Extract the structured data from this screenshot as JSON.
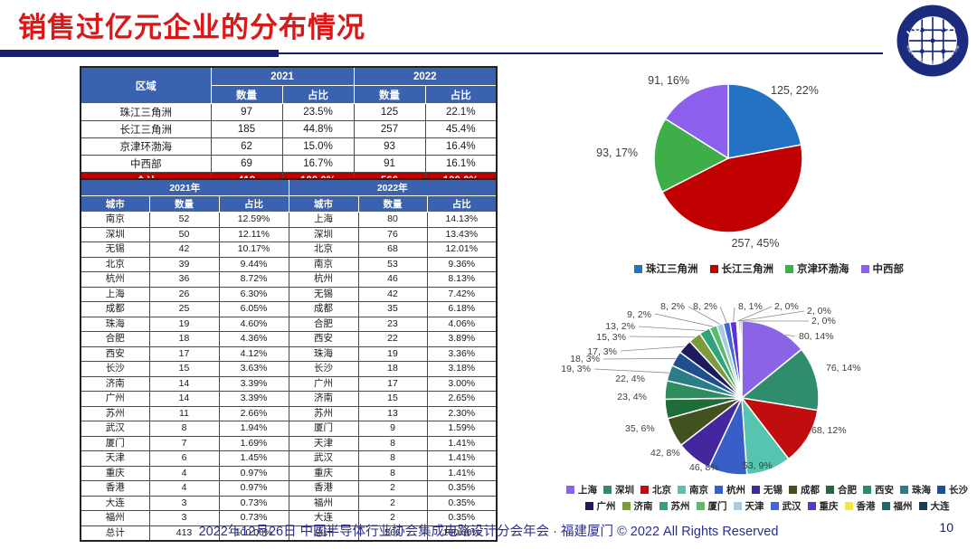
{
  "header": {
    "title": "销售过亿元企业的分布情况",
    "logo": {
      "name": "ICCAD",
      "ring_text": "中国半导体行业协会集成电路设计分会"
    }
  },
  "region_table": {
    "col_region": "区域",
    "year1": "2021",
    "year2": "2022",
    "col_count": "数量",
    "col_share": "占比",
    "rows": [
      [
        "珠江三角洲",
        "97",
        "23.5%",
        "125",
        "22.1%"
      ],
      [
        "长江三角洲",
        "185",
        "44.8%",
        "257",
        "45.4%"
      ],
      [
        "京津环渤海",
        "62",
        "15.0%",
        "93",
        "16.4%"
      ],
      [
        "中西部",
        "69",
        "16.7%",
        "91",
        "16.1%"
      ]
    ],
    "total_row": [
      "合计",
      "413",
      "100.0%",
      "566",
      "100.0%"
    ]
  },
  "city_table": {
    "year1": "2021年",
    "year2": "2022年",
    "col_city": "城市",
    "col_count": "数量",
    "col_share": "占比",
    "rows": [
      [
        "南京",
        "52",
        "12.59%",
        "上海",
        "80",
        "14.13%"
      ],
      [
        "深圳",
        "50",
        "12.11%",
        "深圳",
        "76",
        "13.43%"
      ],
      [
        "无锡",
        "42",
        "10.17%",
        "北京",
        "68",
        "12.01%"
      ],
      [
        "北京",
        "39",
        "9.44%",
        "南京",
        "53",
        "9.36%"
      ],
      [
        "杭州",
        "36",
        "8.72%",
        "杭州",
        "46",
        "8.13%"
      ],
      [
        "上海",
        "26",
        "6.30%",
        "无锡",
        "42",
        "7.42%"
      ],
      [
        "成都",
        "25",
        "6.05%",
        "成都",
        "35",
        "6.18%"
      ],
      [
        "珠海",
        "19",
        "4.60%",
        "合肥",
        "23",
        "4.06%"
      ],
      [
        "合肥",
        "18",
        "4.36%",
        "西安",
        "22",
        "3.89%"
      ],
      [
        "西安",
        "17",
        "4.12%",
        "珠海",
        "19",
        "3.36%"
      ],
      [
        "长沙",
        "15",
        "3.63%",
        "长沙",
        "18",
        "3.18%"
      ],
      [
        "济南",
        "14",
        "3.39%",
        "广州",
        "17",
        "3.00%"
      ],
      [
        "广州",
        "14",
        "3.39%",
        "济南",
        "15",
        "2.65%"
      ],
      [
        "苏州",
        "11",
        "2.66%",
        "苏州",
        "13",
        "2.30%"
      ],
      [
        "武汉",
        "8",
        "1.94%",
        "厦门",
        "9",
        "1.59%"
      ],
      [
        "厦门",
        "7",
        "1.69%",
        "天津",
        "8",
        "1.41%"
      ],
      [
        "天津",
        "6",
        "1.45%",
        "武汉",
        "8",
        "1.41%"
      ],
      [
        "重庆",
        "4",
        "0.97%",
        "重庆",
        "8",
        "1.41%"
      ],
      [
        "香港",
        "4",
        "0.97%",
        "香港",
        "2",
        "0.35%"
      ],
      [
        "大连",
        "3",
        "0.73%",
        "福州",
        "2",
        "0.35%"
      ],
      [
        "福州",
        "3",
        "0.73%",
        "大连",
        "2",
        "0.35%"
      ],
      [
        "总计",
        "413",
        "100.00%",
        "总计",
        "566",
        "100.00%"
      ]
    ]
  },
  "chart_data": [
    {
      "type": "pie",
      "name": "region-distribution-2022",
      "categories": [
        "珠江三角洲",
        "长江三角洲",
        "京津环渤海",
        "中西部"
      ],
      "values": [
        125,
        257,
        93,
        91
      ],
      "labels": [
        "125, 22%",
        "257, 45%",
        "93, 17%",
        "91, 16%"
      ],
      "colors": [
        "#2473c3",
        "#c00000",
        "#3eae49",
        "#8c60ec"
      ],
      "legend_position": "bottom",
      "start_angle_deg": 0,
      "direction": "clockwise"
    },
    {
      "type": "pie",
      "name": "city-distribution-2022",
      "categories": [
        "上海",
        "深圳",
        "北京",
        "南京",
        "杭州",
        "无锡",
        "成都",
        "合肥",
        "西安",
        "珠海",
        "长沙",
        "广州",
        "济南",
        "苏州",
        "厦门",
        "天津",
        "武汉",
        "重庆",
        "香港",
        "福州",
        "大连"
      ],
      "values": [
        80,
        76,
        68,
        53,
        46,
        42,
        35,
        23,
        22,
        19,
        18,
        17,
        15,
        13,
        9,
        8,
        8,
        8,
        2,
        2,
        2
      ],
      "labels": [
        "80, 14%",
        "76, 14%",
        "68, 12%",
        "53, 9%",
        "46, 8%",
        "42, 8%",
        "35, 6%",
        "23, 4%",
        "22, 4%",
        "19, 3%",
        "18, 3%",
        "17, 3%",
        "15, 3%",
        "13, 2%",
        "9, 2%",
        "8, 2%",
        "8, 2%",
        "8, 1%",
        "2, 0%",
        "2, 0%",
        "2, 0%"
      ],
      "colors": [
        "#8b63e6",
        "#2f8c6c",
        "#c00d0d",
        "#55c5b0",
        "#3a5ec8",
        "#44279e",
        "#41511f",
        "#1f6b3a",
        "#2e8c5f",
        "#2b7d87",
        "#204f8f",
        "#1d1a5f",
        "#7c9b3b",
        "#2fa379",
        "#5bbb6a",
        "#a9cbe2",
        "#4167d2",
        "#5d30d8",
        "#f2e845",
        "#1c6b6b",
        "#16404f"
      ],
      "legend_position": "bottom",
      "start_angle_deg": 0,
      "direction": "clockwise"
    }
  ],
  "footer": {
    "text": "2022年12月26日 中国半导体行业协会集成电路设计分会年会 · 福建厦门 © 2022 All Rights Reserved",
    "page_number": "10"
  }
}
